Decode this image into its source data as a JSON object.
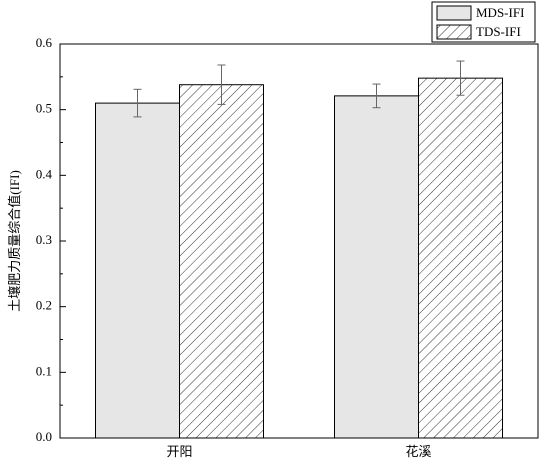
{
  "chart_data": {
    "type": "bar",
    "y_label": "土壤肥力质量综合值(IFI)",
    "categories": [
      "开阳",
      "花溪"
    ],
    "series": [
      {
        "name": "MDS-IFI",
        "color": "#e6e6e6",
        "values": [
          0.51,
          0.521
        ],
        "errors": [
          0.021,
          0.018
        ]
      },
      {
        "name": "TDS-IFI",
        "color": "#ffffff",
        "pattern": "hatch",
        "values": [
          0.538,
          0.548
        ],
        "errors": [
          0.03,
          0.026
        ]
      }
    ],
    "ylim": [
      0,
      0.6
    ],
    "yticks": [
      {
        "value": 0,
        "label": "0.0"
      },
      0.1,
      0.2,
      0.3,
      0.4,
      0.5,
      0.6
    ],
    "legend": "top-right"
  }
}
